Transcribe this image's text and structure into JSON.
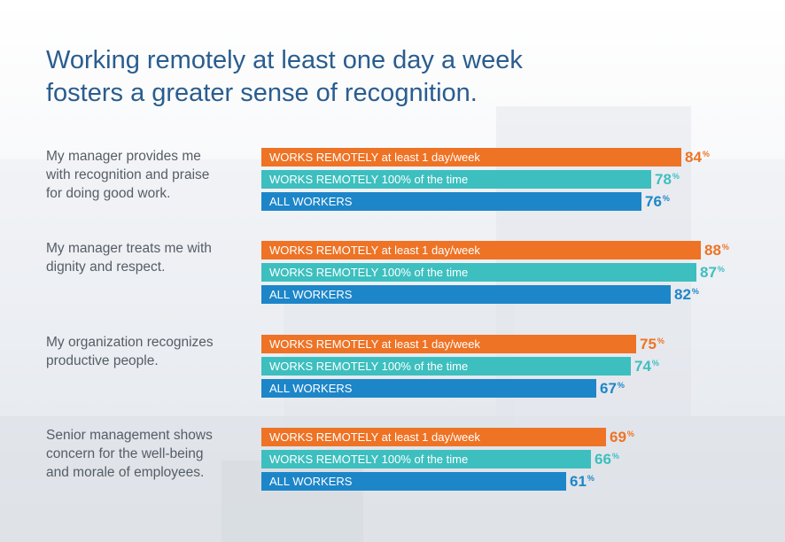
{
  "title_lines": [
    "Working remotely at least one day a week",
    "fosters a greater sense of recognition."
  ],
  "colors": {
    "title": "#2a5d8f",
    "label_text": "#555d66",
    "remote_1day": "#ee7325",
    "remote_100": "#3dbfbf",
    "all_workers": "#1d86c9"
  },
  "chart_data": {
    "type": "bar",
    "orientation": "horizontal",
    "unit": "%",
    "series": [
      {
        "name": "WORKS REMOTELY at least 1 day/week",
        "color": "#ee7325",
        "values": [
          84,
          88,
          75,
          69
        ]
      },
      {
        "name": "WORKS REMOTELY 100% of the time",
        "color": "#3dbfbf",
        "values": [
          78,
          87,
          74,
          66
        ]
      },
      {
        "name": "ALL WORKERS",
        "color": "#1d86c9",
        "values": [
          76,
          82,
          67,
          61
        ]
      }
    ],
    "groups": [
      {
        "label_lines": [
          "My manager provides me",
          "with recognition and praise",
          "for doing good work."
        ]
      },
      {
        "label_lines": [
          "My manager treats me with",
          "dignity and respect."
        ]
      },
      {
        "label_lines": [
          "My organization recognizes",
          "productive people."
        ]
      },
      {
        "label_lines": [
          "Senior management shows",
          "concern for the well-being",
          "and morale of employees."
        ]
      }
    ]
  }
}
